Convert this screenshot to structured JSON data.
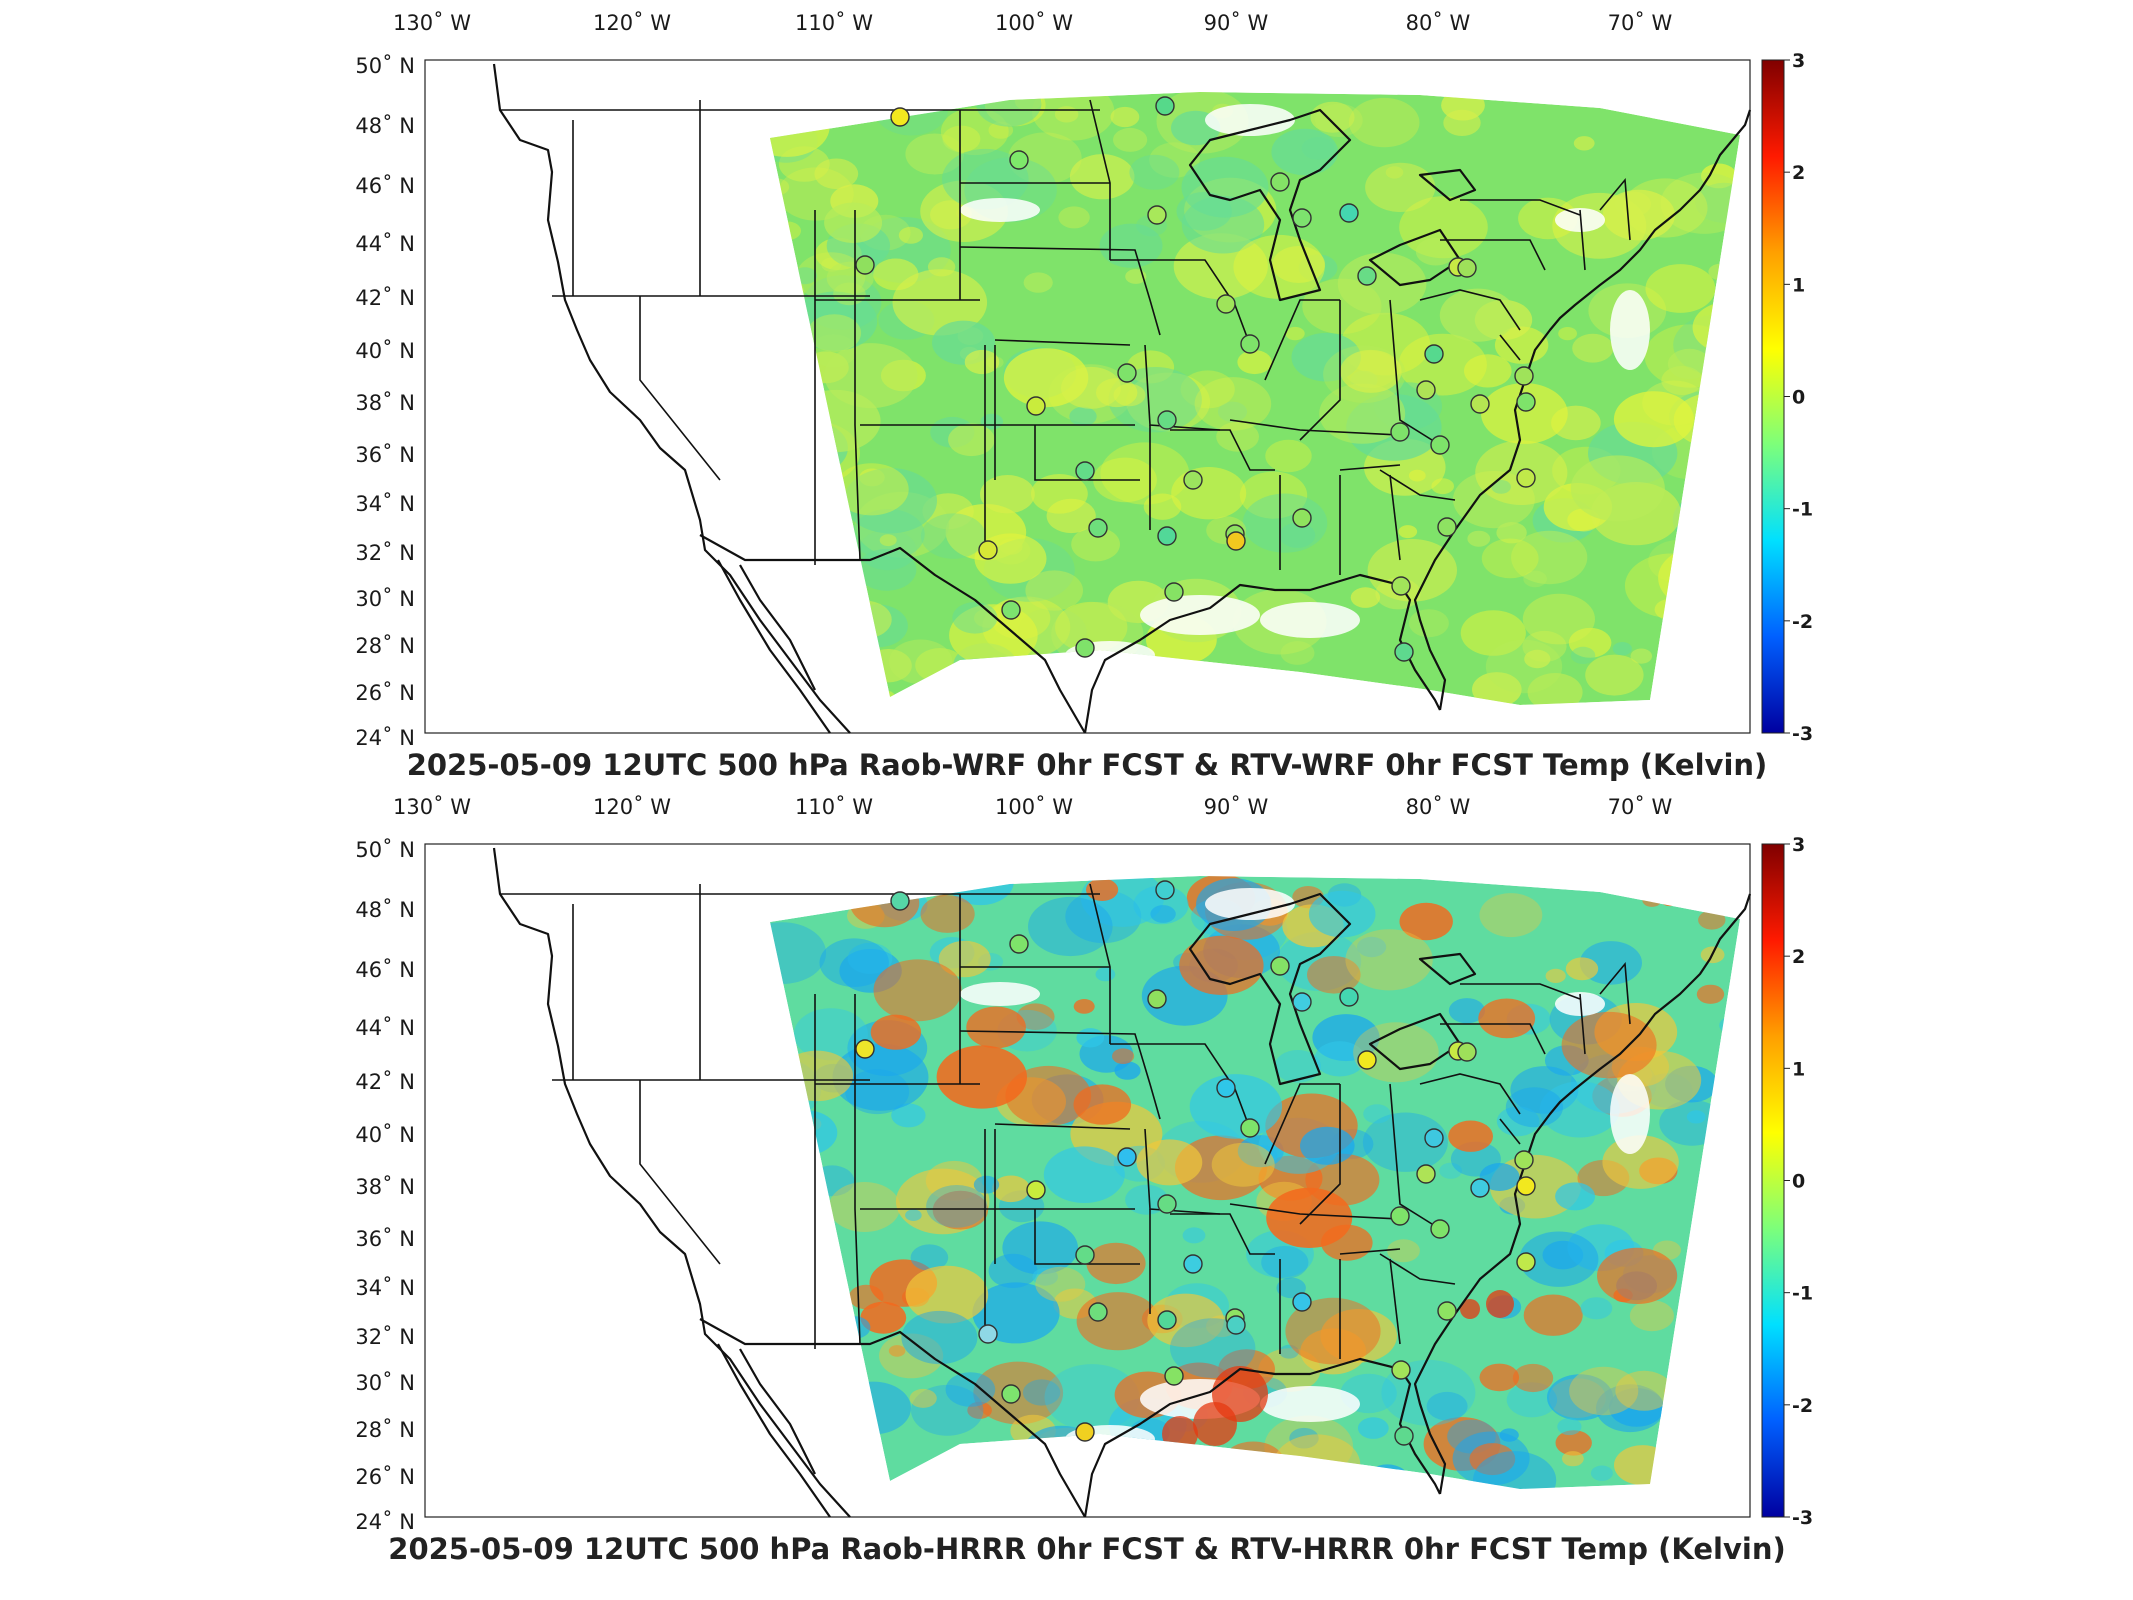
{
  "panels": [
    {
      "title": "2025-05-09 12UTC 500 hPa Raob-WRF 0hr FCST & RTV-WRF 0hr FCST Temp (Kelvin)",
      "base_color": "#7fe36a",
      "patches": [
        {
          "color": "#d8f04a",
          "kind": "warm"
        },
        {
          "color": "#b8ec5a",
          "kind": "warm"
        },
        {
          "color": "#66dc96",
          "kind": "cool"
        },
        {
          "color": "#e2f43c",
          "kind": "warm"
        }
      ],
      "stations": [
        {
          "color": "#f2e81f"
        },
        {
          "color": "#7ee86a"
        },
        {
          "color": "#56d98a"
        },
        {
          "color": "#8fe05e"
        },
        {
          "color": "#a8e85a"
        },
        {
          "color": "#7de26e"
        },
        {
          "color": "#44d6b0"
        },
        {
          "color": "#9fe45a"
        },
        {
          "color": "#7ee36a"
        },
        {
          "color": "#84e266"
        },
        {
          "color": "#68dc86"
        },
        {
          "color": "#c8ea44"
        },
        {
          "color": "#56d98e"
        },
        {
          "color": "#9ee05a"
        },
        {
          "color": "#7ee26a"
        },
        {
          "color": "#66dc84"
        },
        {
          "color": "#aee356"
        },
        {
          "color": "#c9ec3c"
        },
        {
          "color": "#9be45e"
        },
        {
          "color": "#63dc88"
        },
        {
          "color": "#8ee262"
        },
        {
          "color": "#8fe35e"
        },
        {
          "color": "#d8e836"
        },
        {
          "color": "#6ede7c"
        },
        {
          "color": "#52d898"
        },
        {
          "color": "#f2c81f"
        },
        {
          "color": "#7de36e"
        },
        {
          "color": "#7fe26a"
        },
        {
          "color": "#86e264"
        },
        {
          "color": "#a2e45a"
        },
        {
          "color": "#b5e652"
        },
        {
          "color": "#7ee36a"
        },
        {
          "color": "#7ee36a"
        },
        {
          "color": "#c0e94a"
        },
        {
          "color": "#8ee262"
        },
        {
          "color": "#5ed98e"
        },
        {
          "color": "#9fe35a"
        },
        {
          "color": "#7ee36a"
        }
      ]
    },
    {
      "title": "2025-05-09 12UTC 500 hPa Raob-HRRR 0hr FCST & RTV-HRRR 0hr FCST Temp (Kelvin)",
      "base_color": "#5fdca0",
      "patches": [
        {
          "color": "#2fc6e8",
          "kind": "cool"
        },
        {
          "color": "#1aa6ee",
          "kind": "cool"
        },
        {
          "color": "#f0c83a",
          "kind": "warm"
        },
        {
          "color": "#f26a1e",
          "kind": "hot"
        }
      ],
      "stations": [
        {
          "color": "#56d6a6"
        },
        {
          "color": "#7ee36a"
        },
        {
          "color": "#40cfd0"
        },
        {
          "color": "#eee62a"
        },
        {
          "color": "#8fe05e"
        },
        {
          "color": "#40cde0"
        },
        {
          "color": "#44d6b0"
        },
        {
          "color": "#2fc6e8"
        },
        {
          "color": "#7ee36a"
        },
        {
          "color": "#84e266"
        },
        {
          "color": "#f2e81f"
        },
        {
          "color": "#c8ea44"
        },
        {
          "color": "#3ec8e0"
        },
        {
          "color": "#9ee05a"
        },
        {
          "color": "#2fbfee"
        },
        {
          "color": "#66dc84"
        },
        {
          "color": "#aee356"
        },
        {
          "color": "#c9ec3c"
        },
        {
          "color": "#3ccde0"
        },
        {
          "color": "#63dc88"
        },
        {
          "color": "#8ee262"
        },
        {
          "color": "#35c4e8"
        },
        {
          "color": "#8fd8e6"
        },
        {
          "color": "#6ede7c"
        },
        {
          "color": "#52d898"
        },
        {
          "color": "#4bd0c4"
        },
        {
          "color": "#7de36e"
        },
        {
          "color": "#f0d020"
        },
        {
          "color": "#86e264"
        },
        {
          "color": "#a2e45a"
        },
        {
          "color": "#3fcbe0"
        },
        {
          "color": "#7ee36a"
        },
        {
          "color": "#f2e81f"
        },
        {
          "color": "#c0e94a"
        },
        {
          "color": "#8ee262"
        },
        {
          "color": "#5ed98e"
        },
        {
          "color": "#9fe35a"
        },
        {
          "color": "#7ee36a"
        }
      ]
    }
  ],
  "lon_labels": [
    "130˚ W",
    "120˚ W",
    "110˚ W",
    "100˚ W",
    "90˚ W",
    "80˚ W",
    "70˚ W"
  ],
  "lat_labels": [
    "50˚ N",
    "48˚ N",
    "46˚ N",
    "44˚ N",
    "42˚ N",
    "40˚ N",
    "38˚ N",
    "36˚ N",
    "34˚ N",
    "32˚ N",
    "30˚ N",
    "28˚ N",
    "26˚ N",
    "24˚ N"
  ],
  "colorbar_ticks": [
    "3",
    "2",
    "1",
    "0",
    "-1",
    "-2",
    "-3"
  ],
  "colorbar_colors": [
    "#800000",
    "#ff1a00",
    "#ffa000",
    "#ffff00",
    "#7dff7a",
    "#00e0ff",
    "#0060ff",
    "#0000a0"
  ]
}
